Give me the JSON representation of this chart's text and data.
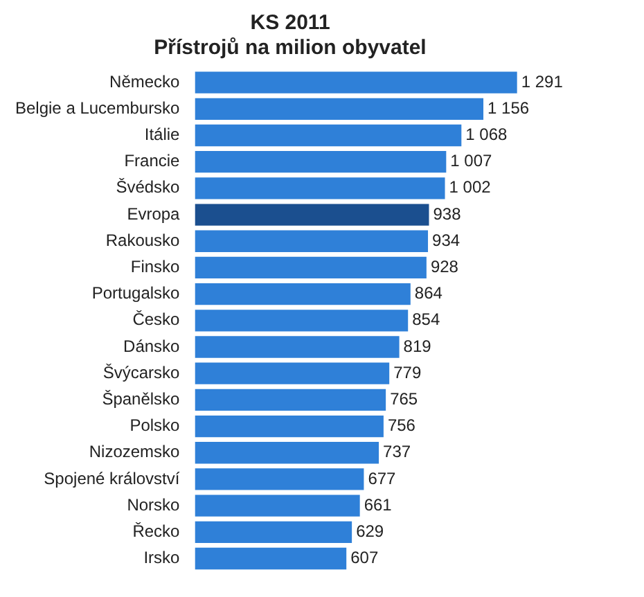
{
  "chart_data": {
    "type": "bar",
    "orientation": "horizontal",
    "title": [
      "KS 2011",
      "Přístrojů na milion obyvatel"
    ],
    "categories": [
      "Německo",
      "Belgie a Lucembursko",
      "Itálie",
      "Francie",
      "Švédsko",
      "Evropa",
      "Rakousko",
      "Finsko",
      "Portugalsko",
      "Česko",
      "Dánsko",
      "Švýcarsko",
      "Španělsko",
      "Polsko",
      "Nizozemsko",
      "Spojené království",
      "Norsko",
      "Řecko",
      "Irsko"
    ],
    "values": [
      1291,
      1156,
      1068,
      1007,
      1002,
      938,
      934,
      928,
      864,
      854,
      819,
      779,
      765,
      756,
      737,
      677,
      661,
      629,
      607
    ],
    "value_labels": [
      "1 291",
      "1 156",
      "1 068",
      "1 007",
      "1 002",
      "938",
      "934",
      "928",
      "864",
      "854",
      "819",
      "779",
      "765",
      "756",
      "737",
      "677",
      "661",
      "629",
      "607"
    ],
    "colors": [
      "#2f80d8",
      "#2f80d8",
      "#2f80d8",
      "#2f80d8",
      "#2f80d8",
      "#1b4f8f",
      "#2f80d8",
      "#2f80d8",
      "#2f80d8",
      "#2f80d8",
      "#2f80d8",
      "#2f80d8",
      "#2f80d8",
      "#2f80d8",
      "#2f80d8",
      "#2f80d8",
      "#2f80d8",
      "#2f80d8",
      "#2f80d8"
    ],
    "legend": false
  }
}
